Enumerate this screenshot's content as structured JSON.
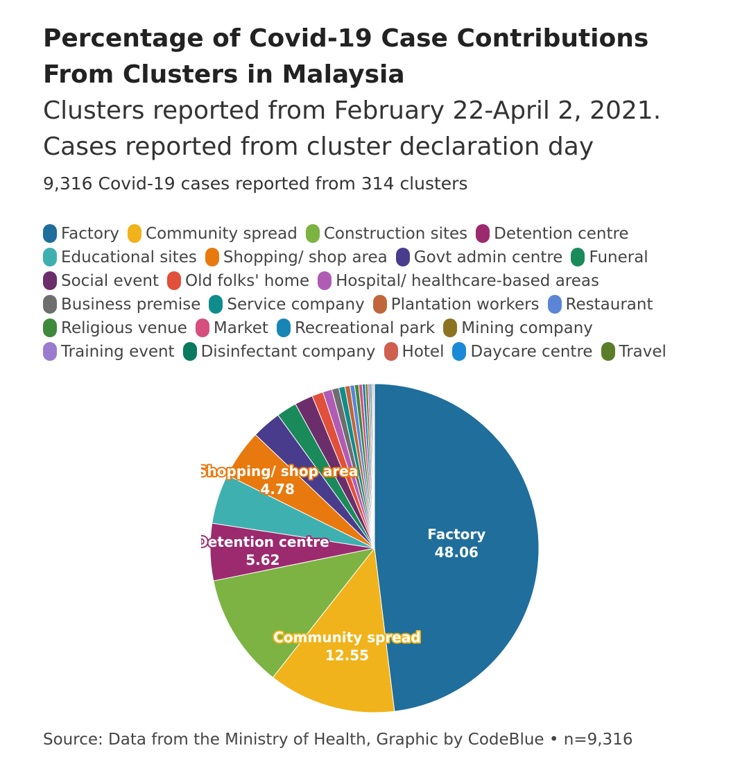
{
  "header": {
    "title": "Percentage of Covid-19 Case Contributions From Clusters in Malaysia",
    "subtitle_line1": "Clusters reported from February 22-April 2, 2021.",
    "subtitle_line2": "Cases reported from cluster declaration day",
    "note": "9,316 Covid-19 cases reported from 314 clusters"
  },
  "source": "Source: Data from the Ministry of Health, Graphic by CodeBlue • n=9,316",
  "chart_data": {
    "type": "pie",
    "legend_position": "top",
    "slices": [
      {
        "name": "Factory",
        "value": 48.06,
        "color": "#1f6e9c",
        "label": true
      },
      {
        "name": "Community spread",
        "value": 12.55,
        "color": "#f0b31b",
        "label": true
      },
      {
        "name": "Construction sites",
        "value": 11.2,
        "color": "#7cb342",
        "label": false
      },
      {
        "name": "Detention centre",
        "value": 5.62,
        "color": "#9c2a6e",
        "label": true
      },
      {
        "name": "Educational sites",
        "value": 4.9,
        "color": "#3fb0b0",
        "label": false
      },
      {
        "name": "Shopping/ shop area",
        "value": 4.78,
        "color": "#e8790e",
        "label": true
      },
      {
        "name": "Govt admin centre",
        "value": 2.9,
        "color": "#4a3c8c",
        "label": false
      },
      {
        "name": "Funeral",
        "value": 2.0,
        "color": "#1a8a5a",
        "label": false
      },
      {
        "name": "Social event",
        "value": 1.8,
        "color": "#6b2e6b",
        "label": false
      },
      {
        "name": "Old folks' home",
        "value": 1.1,
        "color": "#e0503a",
        "label": false
      },
      {
        "name": "Hospital/ healthcare-based areas",
        "value": 0.9,
        "color": "#b05cb5",
        "label": false
      },
      {
        "name": "Business premise",
        "value": 0.7,
        "color": "#6e6e6e",
        "label": false
      },
      {
        "name": "Service company",
        "value": 0.6,
        "color": "#0f8c8c",
        "label": false
      },
      {
        "name": "Plantation workers",
        "value": 0.5,
        "color": "#c0663a",
        "label": false
      },
      {
        "name": "Restaurant",
        "value": 0.45,
        "color": "#5b85d6",
        "label": false
      },
      {
        "name": "Religious venue",
        "value": 0.4,
        "color": "#3d8a3d",
        "label": false
      },
      {
        "name": "Market",
        "value": 0.35,
        "color": "#d64f7f",
        "label": false
      },
      {
        "name": "Recreational park",
        "value": 0.3,
        "color": "#1786b5",
        "label": false
      },
      {
        "name": "Mining company",
        "value": 0.25,
        "color": "#8a7420",
        "label": false
      },
      {
        "name": "Training event",
        "value": 0.2,
        "color": "#9b7bd0",
        "label": false
      },
      {
        "name": "Disinfectant company",
        "value": 0.15,
        "color": "#0a7a5e",
        "label": false
      },
      {
        "name": "Hotel",
        "value": 0.12,
        "color": "#cf5f4f",
        "label": false
      },
      {
        "name": "Daycare centre",
        "value": 0.1,
        "color": "#1a8ad6",
        "label": false
      },
      {
        "name": "Travel",
        "value": 0.07,
        "color": "#5a7d2a",
        "label": false
      }
    ]
  }
}
